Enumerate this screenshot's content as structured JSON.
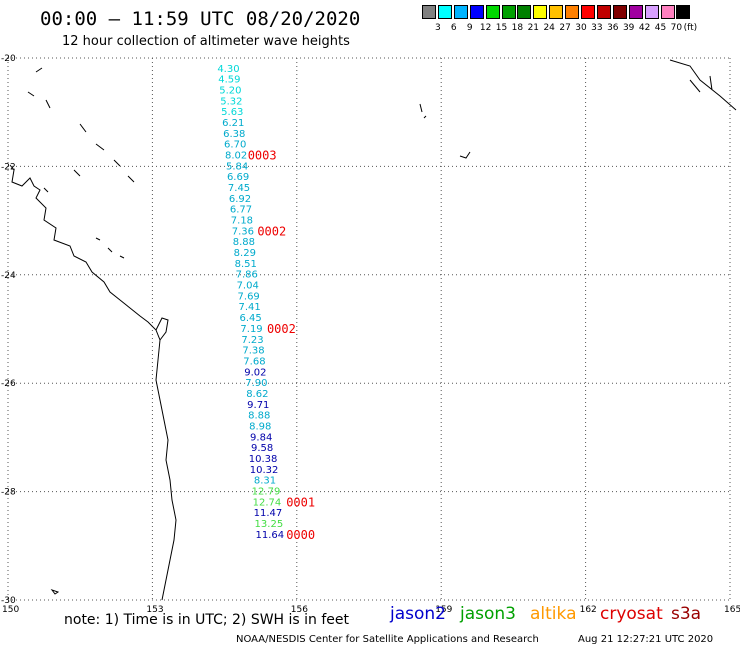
{
  "title": "00:00 – 11:59 UTC 08/20/2020",
  "subtitle": "12 hour collection of altimeter wave heights",
  "legend": {
    "unit": "(ft)",
    "colors": [
      "#808080",
      "#00ffff",
      "#00b4ff",
      "#0000ff",
      "#00d800",
      "#00a000",
      "#008000",
      "#ffff00",
      "#ffc000",
      "#ff8000",
      "#ff0000",
      "#c00000",
      "#800000",
      "#a000a0",
      "#d8a0ff",
      "#ff80c0",
      "#000000"
    ],
    "labels": [
      "3",
      "6",
      "9",
      "12",
      "15",
      "18",
      "21",
      "24",
      "27",
      "30",
      "33",
      "36",
      "39",
      "42",
      "45",
      "70"
    ]
  },
  "note": "note:  1) Time is in UTC;  2) SWH is in feet",
  "satellites": [
    {
      "name": "jason2",
      "color": "#0000cc"
    },
    {
      "name": "jason3",
      "color": "#00a000"
    },
    {
      "name": "altika",
      "color": "#ff9900"
    },
    {
      "name": "cryosat",
      "color": "#dd0000"
    },
    {
      "name": "s3a",
      "color": "#990000"
    }
  ],
  "credit": "NOAA/NESDIS Center for Satellite Applications and Research",
  "timestamp": "Aug 21 12:27:21 UTC 2020",
  "axes": {
    "lat_labels": [
      "-20",
      "-22",
      "-24",
      "-26",
      "-28",
      "-30"
    ],
    "lon_labels": [
      "150",
      "153",
      "156",
      "159",
      "162",
      "165"
    ]
  },
  "chart_data": {
    "type": "scatter",
    "xlim": [
      150,
      165
    ],
    "ylim": [
      -30,
      -20
    ],
    "lat_ticks": [
      -20,
      -22,
      -24,
      -26,
      -28,
      -30
    ],
    "lon_ticks": [
      150,
      153,
      156,
      159,
      162,
      165
    ],
    "grid": true,
    "points": [
      {
        "lon": 154.58,
        "lat": -20.18,
        "v": "4.30",
        "c": "#00d8d8"
      },
      {
        "lon": 154.6,
        "lat": -20.38,
        "v": "4.59",
        "c": "#00d8d8"
      },
      {
        "lon": 154.62,
        "lat": -20.58,
        "v": "5.20",
        "c": "#00d8d8"
      },
      {
        "lon": 154.64,
        "lat": -20.78,
        "v": "5.32",
        "c": "#00d8d8"
      },
      {
        "lon": 154.66,
        "lat": -20.98,
        "v": "5.63",
        "c": "#00d8d8"
      },
      {
        "lon": 154.68,
        "lat": -21.18,
        "v": "6.21",
        "c": "#00aacc"
      },
      {
        "lon": 154.7,
        "lat": -21.38,
        "v": "6.38",
        "c": "#00aacc"
      },
      {
        "lon": 154.72,
        "lat": -21.58,
        "v": "6.70",
        "c": "#00aacc"
      },
      {
        "lon": 154.74,
        "lat": -21.78,
        "v": "8.02",
        "c": "#00aacc"
      },
      {
        "lon": 154.76,
        "lat": -21.98,
        "v": "5.84",
        "c": "#00aacc"
      },
      {
        "lon": 154.78,
        "lat": -22.18,
        "v": "6.69",
        "c": "#00aacc"
      },
      {
        "lon": 154.8,
        "lat": -22.38,
        "v": "7.45",
        "c": "#00aacc"
      },
      {
        "lon": 154.82,
        "lat": -22.58,
        "v": "6.92",
        "c": "#00aacc"
      },
      {
        "lon": 154.84,
        "lat": -22.78,
        "v": "6.77",
        "c": "#00aacc"
      },
      {
        "lon": 154.86,
        "lat": -22.98,
        "v": "7.18",
        "c": "#00aacc"
      },
      {
        "lon": 154.88,
        "lat": -23.18,
        "v": "7.36",
        "c": "#00aacc"
      },
      {
        "lon": 154.9,
        "lat": -23.38,
        "v": "8.88",
        "c": "#00aacc"
      },
      {
        "lon": 154.92,
        "lat": -23.58,
        "v": "8.29",
        "c": "#00aacc"
      },
      {
        "lon": 154.94,
        "lat": -23.78,
        "v": "8.51",
        "c": "#00aacc"
      },
      {
        "lon": 154.96,
        "lat": -23.98,
        "v": "7.86",
        "c": "#00aacc"
      },
      {
        "lon": 154.98,
        "lat": -24.18,
        "v": "7.04",
        "c": "#00aacc"
      },
      {
        "lon": 155.0,
        "lat": -24.38,
        "v": "7.69",
        "c": "#00aacc"
      },
      {
        "lon": 155.02,
        "lat": -24.58,
        "v": "7.41",
        "c": "#00aacc"
      },
      {
        "lon": 155.04,
        "lat": -24.78,
        "v": "6.45",
        "c": "#00aacc"
      },
      {
        "lon": 155.06,
        "lat": -24.98,
        "v": "7.19",
        "c": "#00aacc"
      },
      {
        "lon": 155.08,
        "lat": -25.18,
        "v": "7.23",
        "c": "#00aacc"
      },
      {
        "lon": 155.1,
        "lat": -25.38,
        "v": "7.38",
        "c": "#00aacc"
      },
      {
        "lon": 155.12,
        "lat": -25.58,
        "v": "7.68",
        "c": "#00aacc"
      },
      {
        "lon": 155.14,
        "lat": -25.78,
        "v": "9.02",
        "c": "#0000aa"
      },
      {
        "lon": 155.16,
        "lat": -25.98,
        "v": "7.90",
        "c": "#00aacc"
      },
      {
        "lon": 155.18,
        "lat": -26.18,
        "v": "8.62",
        "c": "#00aacc"
      },
      {
        "lon": 155.2,
        "lat": -26.38,
        "v": "9.71",
        "c": "#0000aa"
      },
      {
        "lon": 155.22,
        "lat": -26.58,
        "v": "8.88",
        "c": "#00aacc"
      },
      {
        "lon": 155.24,
        "lat": -26.78,
        "v": "8.98",
        "c": "#00aacc"
      },
      {
        "lon": 155.26,
        "lat": -26.98,
        "v": "9.84",
        "c": "#0000aa"
      },
      {
        "lon": 155.28,
        "lat": -27.18,
        "v": "9.58",
        "c": "#0000aa"
      },
      {
        "lon": 155.3,
        "lat": -27.38,
        "v": "10.38",
        "c": "#0000aa"
      },
      {
        "lon": 155.32,
        "lat": -27.58,
        "v": "10.32",
        "c": "#0000aa"
      },
      {
        "lon": 155.34,
        "lat": -27.78,
        "v": "8.31",
        "c": "#00aacc"
      },
      {
        "lon": 155.36,
        "lat": -27.98,
        "v": "12.79",
        "c": "#44dd44"
      },
      {
        "lon": 155.38,
        "lat": -28.18,
        "v": "12.74",
        "c": "#44dd44"
      },
      {
        "lon": 155.4,
        "lat": -28.38,
        "v": "11.47",
        "c": "#0000aa"
      },
      {
        "lon": 155.42,
        "lat": -28.58,
        "v": "13.25",
        "c": "#44dd44"
      },
      {
        "lon": 155.44,
        "lat": -28.78,
        "v": "11.64",
        "c": "#0000aa"
      }
    ],
    "passes": [
      {
        "lon": 155.28,
        "lat": -21.78,
        "label": "0003"
      },
      {
        "lon": 155.48,
        "lat": -23.18,
        "label": "0002"
      },
      {
        "lon": 155.68,
        "lat": -24.98,
        "label": "0002"
      },
      {
        "lon": 156.08,
        "lat": -28.18,
        "label": "0001"
      },
      {
        "lon": 156.08,
        "lat": -28.78,
        "label": "0000"
      }
    ]
  }
}
